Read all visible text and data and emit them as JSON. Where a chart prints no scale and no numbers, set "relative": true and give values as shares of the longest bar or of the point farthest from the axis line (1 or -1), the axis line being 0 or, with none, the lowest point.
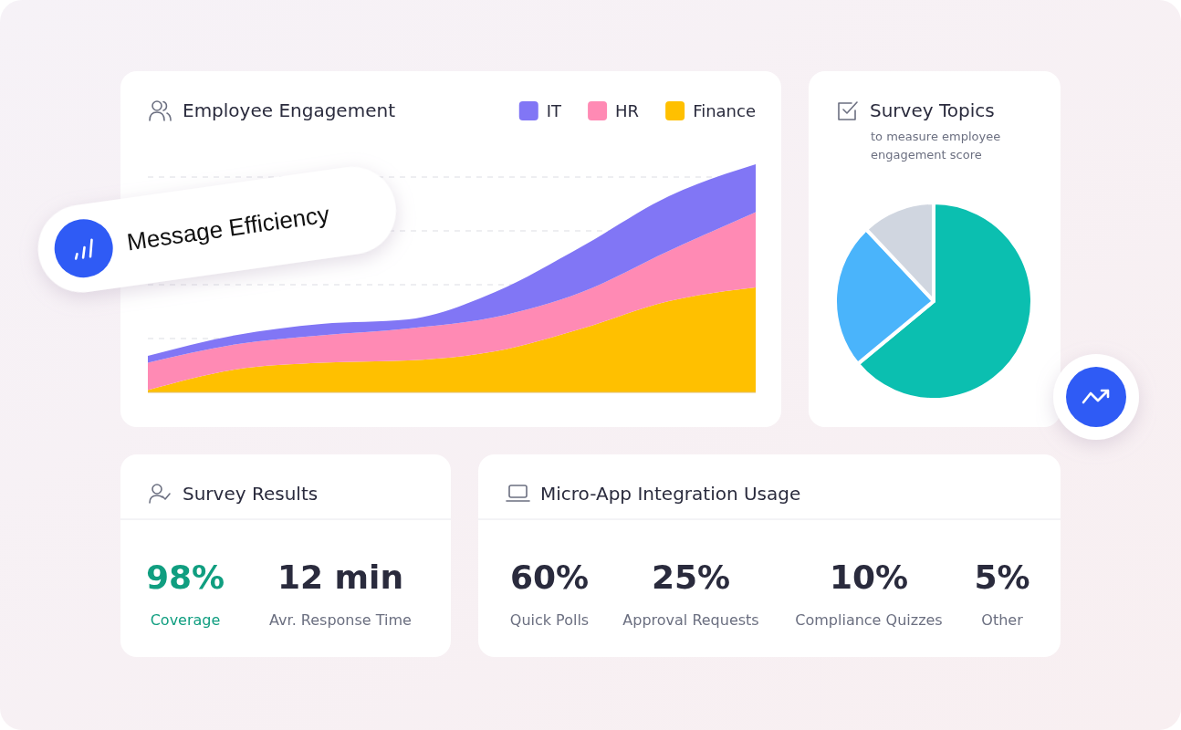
{
  "chart_data": [
    {
      "type": "area",
      "title": "Employee Engagement",
      "relative": true,
      "stacked": true,
      "grid": "y",
      "legend": "top right",
      "categories": [
        null,
        null,
        null,
        null,
        null,
        null,
        null,
        null
      ],
      "annotations": [
        "Message Efficiency"
      ],
      "series": [
        {
          "name": "Finance",
          "color": "#ffc000",
          "values": [
            0.01,
            0.1,
            0.13,
            0.14,
            0.18,
            0.28,
            0.4,
            0.46
          ]
        },
        {
          "name": "HR",
          "color": "#ff8ab4",
          "values": [
            0.12,
            0.11,
            0.12,
            0.14,
            0.15,
            0.16,
            0.22,
            0.33
          ]
        },
        {
          "name": "IT",
          "color": "#8176f5",
          "values": [
            0.03,
            0.04,
            0.05,
            0.04,
            0.11,
            0.2,
            0.24,
            0.21
          ]
        }
      ]
    },
    {
      "type": "pie",
      "title": "Survey Topics",
      "subtitle": "to measure employee engagement score",
      "categories": [
        null,
        null,
        null
      ],
      "values": [
        64,
        24,
        12
      ],
      "colors": [
        "#0bbfb0",
        "#4ab4fb",
        "#d0d6e0"
      ]
    },
    {
      "type": "other",
      "title": "Survey Results",
      "categories": [
        "Coverage",
        "Avr. Response Time"
      ],
      "values": [
        98,
        12
      ],
      "value_labels": [
        "98%",
        "12 min"
      ]
    },
    {
      "type": "other",
      "title": "Micro-App Integration Usage",
      "categories": [
        "Quick Polls",
        "Approval Requests",
        "Compliance Quizzes",
        "Other"
      ],
      "values": [
        60,
        25,
        10,
        5
      ],
      "value_labels": [
        "60%",
        "25%",
        "10%",
        "5%"
      ]
    }
  ]
}
